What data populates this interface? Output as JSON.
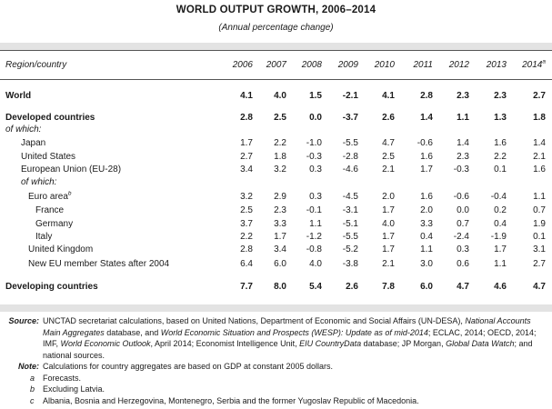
{
  "title": "WORLD OUTPUT GROWTH, 2006–2014",
  "subtitle": "(Annual percentage change)",
  "table": {
    "header_label": "Region/country",
    "years": [
      "2006",
      "2007",
      "2008",
      "2009",
      "2010",
      "2011",
      "2012",
      "2013",
      "2014"
    ],
    "last_year_mark": "a",
    "rows": [
      {
        "label": "World",
        "values": [
          "4.1",
          "4.0",
          "1.5",
          "-2.1",
          "4.1",
          "2.8",
          "2.3",
          "2.3",
          "2.7"
        ]
      },
      {
        "label": "Developed countries",
        "values": [
          "2.8",
          "2.5",
          "0.0",
          "-3.7",
          "2.6",
          "1.4",
          "1.1",
          "1.3",
          "1.8"
        ]
      },
      {
        "label": "of which:"
      },
      {
        "label": "Japan",
        "values": [
          "1.7",
          "2.2",
          "-1.0",
          "-5.5",
          "4.7",
          "-0.6",
          "1.4",
          "1.6",
          "1.4"
        ]
      },
      {
        "label": "United States",
        "values": [
          "2.7",
          "1.8",
          "-0.3",
          "-2.8",
          "2.5",
          "1.6",
          "2.3",
          "2.2",
          "2.1"
        ]
      },
      {
        "label": "European Union (EU-28)",
        "values": [
          "3.4",
          "3.2",
          "0.3",
          "-4.6",
          "2.1",
          "1.7",
          "-0.3",
          "0.1",
          "1.6"
        ]
      },
      {
        "label": "of which:"
      },
      {
        "label": "Euro area",
        "mark": "b",
        "values": [
          "3.2",
          "2.9",
          "0.3",
          "-4.5",
          "2.0",
          "1.6",
          "-0.6",
          "-0.4",
          "1.1"
        ]
      },
      {
        "label": "France",
        "values": [
          "2.5",
          "2.3",
          "-0.1",
          "-3.1",
          "1.7",
          "2.0",
          "0.0",
          "0.2",
          "0.7"
        ]
      },
      {
        "label": "Germany",
        "values": [
          "3.7",
          "3.3",
          "1.1",
          "-5.1",
          "4.0",
          "3.3",
          "0.7",
          "0.4",
          "1.9"
        ]
      },
      {
        "label": "Italy",
        "values": [
          "2.2",
          "1.7",
          "-1.2",
          "-5.5",
          "1.7",
          "0.4",
          "-2.4",
          "-1.9",
          "0.1"
        ]
      },
      {
        "label": "United Kingdom",
        "values": [
          "2.8",
          "3.4",
          "-0.8",
          "-5.2",
          "1.7",
          "1.1",
          "0.3",
          "1.7",
          "3.1"
        ]
      },
      {
        "label": "New EU member States after 2004",
        "values": [
          "6.4",
          "6.0",
          "4.0",
          "-3.8",
          "2.1",
          "3.0",
          "0.6",
          "1.1",
          "2.7"
        ]
      },
      {
        "label": "Developing countries",
        "values": [
          "7.7",
          "8.0",
          "5.4",
          "2.6",
          "7.8",
          "6.0",
          "4.7",
          "4.6",
          "4.7"
        ]
      }
    ]
  },
  "notes": {
    "source_key": "Source:",
    "source_pre": "UNCTAD secretariat calculations, based on United Nations, Department of Economic and Social Affairs (UN-DESA), ",
    "source_it1": "National Accounts Main Aggregates",
    "source_mid1": " database, and ",
    "source_it2": "World Economic Situation and Prospects (WESP): Update as of mid-2014",
    "source_mid2": "; ECLAC, 2014; OECD, 2014; IMF, ",
    "source_it3": "World Economic Outlook",
    "source_mid3": ", April 2014; Economist Intelligence Unit, ",
    "source_it4": "EIU CountryData",
    "source_mid4": " database; JP Morgan, ",
    "source_it5": "Global Data Watch",
    "source_end": "; and national sources.",
    "note_key": "Note:",
    "note_text": "Calculations for country aggregates are based on GDP at constant 2005 dollars.",
    "footnotes": [
      {
        "letter": "a",
        "text": "Forecasts."
      },
      {
        "letter": "b",
        "text": "Excluding Latvia."
      },
      {
        "letter": "c",
        "text": "Albania, Bosnia and Herzegovina, Montenegro, Serbia and the former Yugoslav Republic of Macedonia."
      }
    ]
  }
}
